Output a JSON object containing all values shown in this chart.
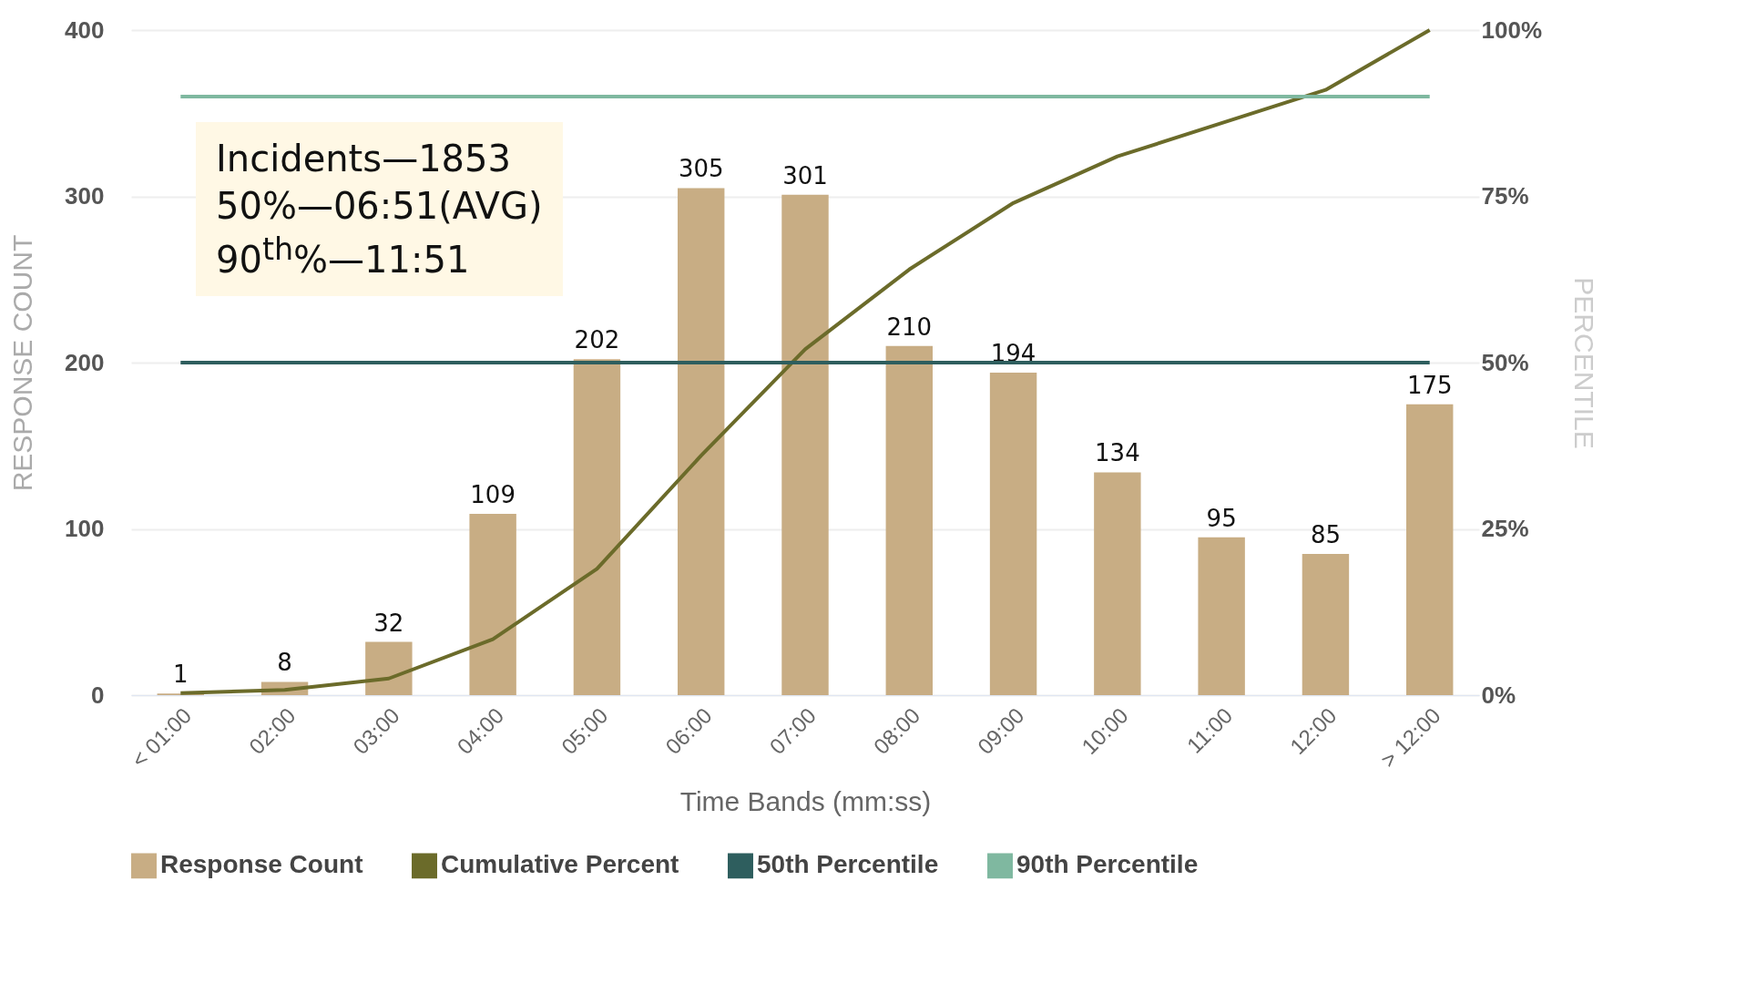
{
  "chart_data": {
    "type": "bar",
    "xlabel": "Time Bands (mm:ss)",
    "ylabel": "RESPONSE COUNT",
    "y2label": "PERCENTILE",
    "categories": [
      "< 01:00",
      "02:00",
      "03:00",
      "04:00",
      "05:00",
      "06:00",
      "07:00",
      "08:00",
      "09:00",
      "10:00",
      "11:00",
      "12:00",
      "> 12:00"
    ],
    "series": [
      {
        "name": "Response Count",
        "color": "#c8ad84",
        "values": [
          1,
          8,
          32,
          109,
          202,
          305,
          301,
          210,
          194,
          134,
          95,
          85,
          175
        ],
        "value_labels": [
          "1",
          "8",
          "32",
          "109",
          "202",
          "305",
          "301",
          "210",
          "194",
          "134",
          "95",
          "85",
          "175"
        ]
      },
      {
        "name": "Cumulative Percent",
        "type": "line",
        "axis": "y2",
        "color": "#6b6b2a",
        "values": [
          0.3,
          0.8,
          2.5,
          8.4,
          19,
          36,
          52,
          64,
          74,
          81,
          86,
          91,
          100
        ]
      },
      {
        "name": "50th Percentile",
        "type": "line",
        "axis": "y2",
        "color": "#2e5e5e",
        "values": [
          50,
          50,
          50,
          50,
          50,
          50,
          50,
          50,
          50,
          50,
          50,
          50,
          50
        ]
      },
      {
        "name": "90th Percentile",
        "type": "line",
        "axis": "y2",
        "color": "#7fb8a0",
        "values": [
          90,
          90,
          90,
          90,
          90,
          90,
          90,
          90,
          90,
          90,
          90,
          90,
          90
        ]
      }
    ],
    "ylim": [
      0,
      400
    ],
    "yticks": [
      0,
      100,
      200,
      300,
      400
    ],
    "y2lim": [
      0,
      100
    ],
    "y2ticks": [
      {
        "value": 0,
        "label": "0%"
      },
      {
        "value": 25,
        "label": "25%"
      },
      {
        "value": 50,
        "label": "50%"
      },
      {
        "value": 75,
        "label": "75%"
      },
      {
        "value": 100,
        "label": "100%"
      }
    ],
    "grid": "y",
    "legend": "bottom",
    "annotations": [
      "Incidents—1853",
      "50%—06:51(AVG)",
      "90$^{th}$%—11:51"
    ]
  }
}
